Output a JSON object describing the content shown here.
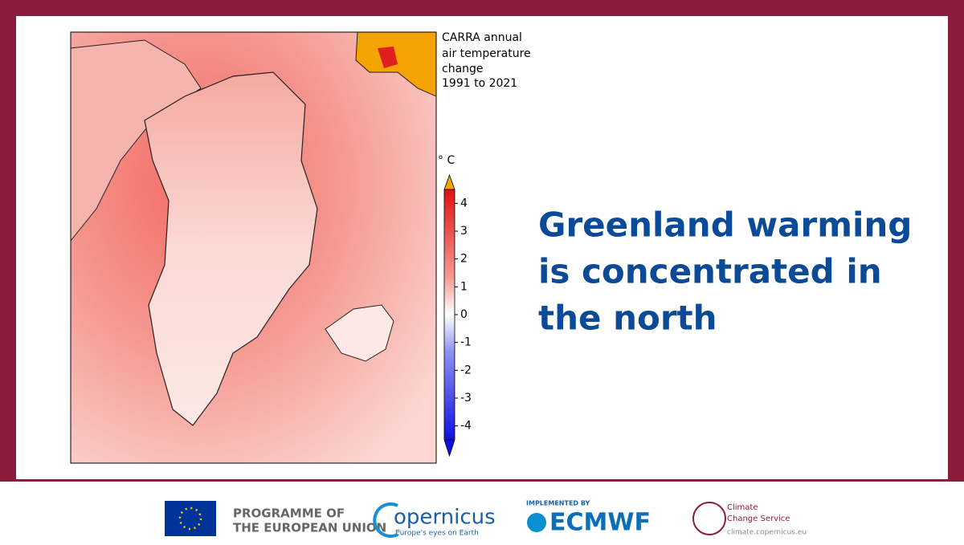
{
  "map": {
    "title_lines": [
      "CARRA annual",
      "air temperature",
      "change",
      "1991 to 2021"
    ],
    "colorbar": {
      "unit": "° C",
      "lim": [
        -4.5,
        4.5
      ],
      "ticks": [
        4,
        3,
        2,
        1,
        0,
        -1,
        -2,
        -3,
        -4
      ]
    }
  },
  "headline": {
    "lines": [
      "Greenland warming",
      "is concentrated in",
      "the north"
    ]
  },
  "footer": {
    "eu": [
      "PROGRAMME OF",
      "THE EUROPEAN UNION"
    ],
    "copernicus": {
      "name": "opernicus",
      "tagline": "Europe's eyes on Earth"
    },
    "ecmwf": {
      "implemented_by": "IMPLEMENTED BY",
      "name": "ECMWF"
    },
    "c3s": {
      "lines": [
        "Climate",
        "Change Service"
      ],
      "url": "climate.copernicus.eu"
    }
  }
}
